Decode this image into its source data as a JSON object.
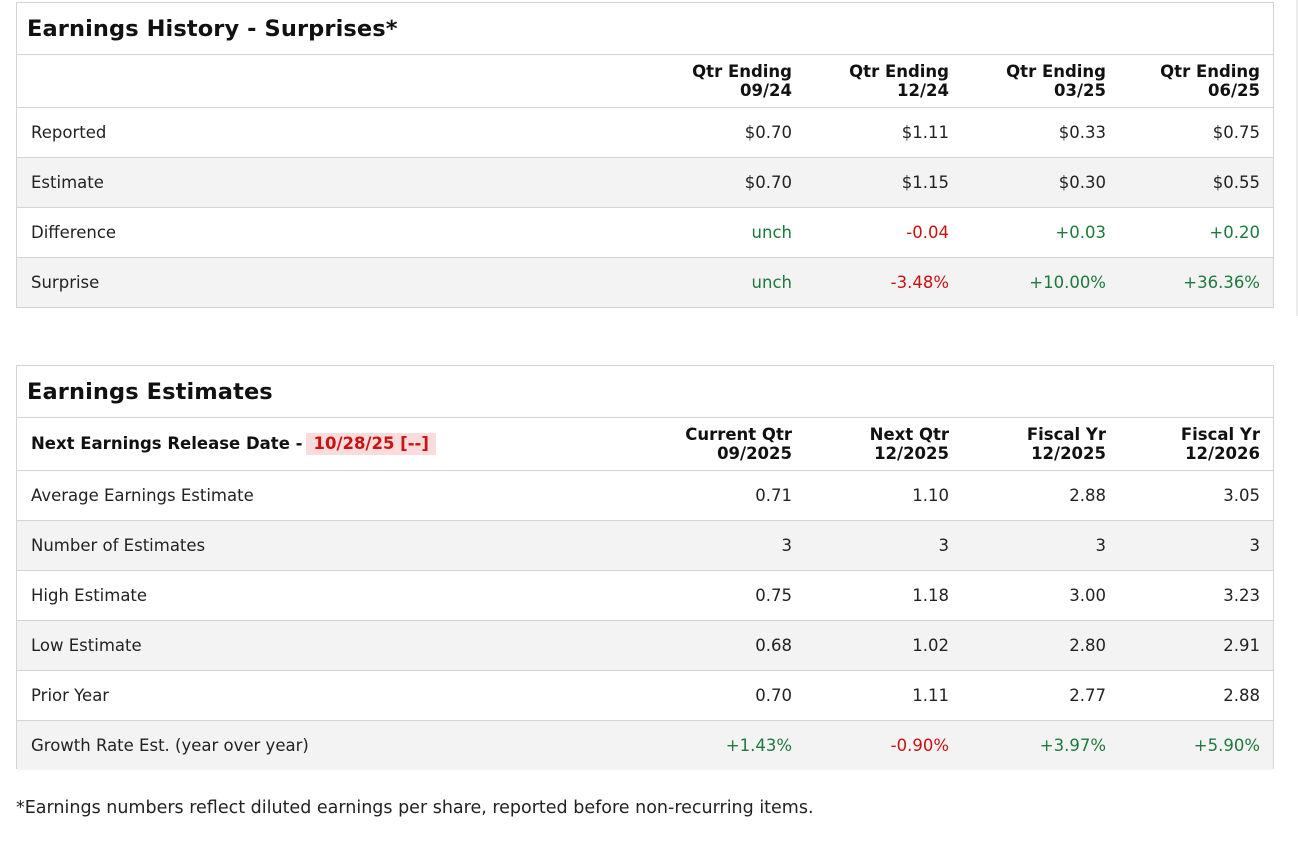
{
  "history": {
    "title": "Earnings History - Surprises*",
    "headers": [
      {
        "line1": "Qtr Ending",
        "line2": "09/24"
      },
      {
        "line1": "Qtr Ending",
        "line2": "12/24"
      },
      {
        "line1": "Qtr Ending",
        "line2": "03/25"
      },
      {
        "line1": "Qtr Ending",
        "line2": "06/25"
      }
    ],
    "rows": [
      {
        "label": "Reported",
        "values": [
          "$0.70",
          "$1.11",
          "$0.33",
          "$0.75"
        ],
        "tones": [
          "",
          "",
          "",
          ""
        ]
      },
      {
        "label": "Estimate",
        "values": [
          "$0.70",
          "$1.15",
          "$0.30",
          "$0.55"
        ],
        "tones": [
          "",
          "",
          "",
          ""
        ]
      },
      {
        "label": "Difference",
        "values": [
          "unch",
          "-0.04",
          "+0.03",
          "+0.20"
        ],
        "tones": [
          "neu",
          "neg",
          "pos",
          "pos"
        ]
      },
      {
        "label": "Surprise",
        "values": [
          "unch",
          "-3.48%",
          "+10.00%",
          "+36.36%"
        ],
        "tones": [
          "neu",
          "neg",
          "pos",
          "pos"
        ]
      }
    ]
  },
  "estimates": {
    "title": "Earnings Estimates",
    "release_label": "Next Earnings Release Date -",
    "release_date": "10/28/25 [--]",
    "headers": [
      {
        "line1": "Current Qtr",
        "line2": "09/2025"
      },
      {
        "line1": "Next Qtr",
        "line2": "12/2025"
      },
      {
        "line1": "Fiscal Yr",
        "line2": "12/2025"
      },
      {
        "line1": "Fiscal Yr",
        "line2": "12/2026"
      }
    ],
    "rows": [
      {
        "label": "Average Earnings Estimate",
        "values": [
          "0.71",
          "1.10",
          "2.88",
          "3.05"
        ],
        "tones": [
          "",
          "",
          "",
          ""
        ]
      },
      {
        "label": "Number of Estimates",
        "values": [
          "3",
          "3",
          "3",
          "3"
        ],
        "tones": [
          "",
          "",
          "",
          ""
        ]
      },
      {
        "label": "High Estimate",
        "values": [
          "0.75",
          "1.18",
          "3.00",
          "3.23"
        ],
        "tones": [
          "",
          "",
          "",
          ""
        ]
      },
      {
        "label": "Low Estimate",
        "values": [
          "0.68",
          "1.02",
          "2.80",
          "2.91"
        ],
        "tones": [
          "",
          "",
          "",
          ""
        ]
      },
      {
        "label": "Prior Year",
        "values": [
          "0.70",
          "1.11",
          "2.77",
          "2.88"
        ],
        "tones": [
          "",
          "",
          "",
          ""
        ]
      },
      {
        "label": "Growth Rate Est. (year over year)",
        "values": [
          "+1.43%",
          "-0.90%",
          "+3.97%",
          "+5.90%"
        ],
        "tones": [
          "pos",
          "neg",
          "pos",
          "pos"
        ]
      }
    ]
  },
  "footnote": "*Earnings numbers reflect diluted earnings per share, reported before non-recurring items.",
  "colors": {
    "positive": "#1d7a3c",
    "negative": "#cc1111",
    "badge_bg": "#fbdcdc"
  }
}
